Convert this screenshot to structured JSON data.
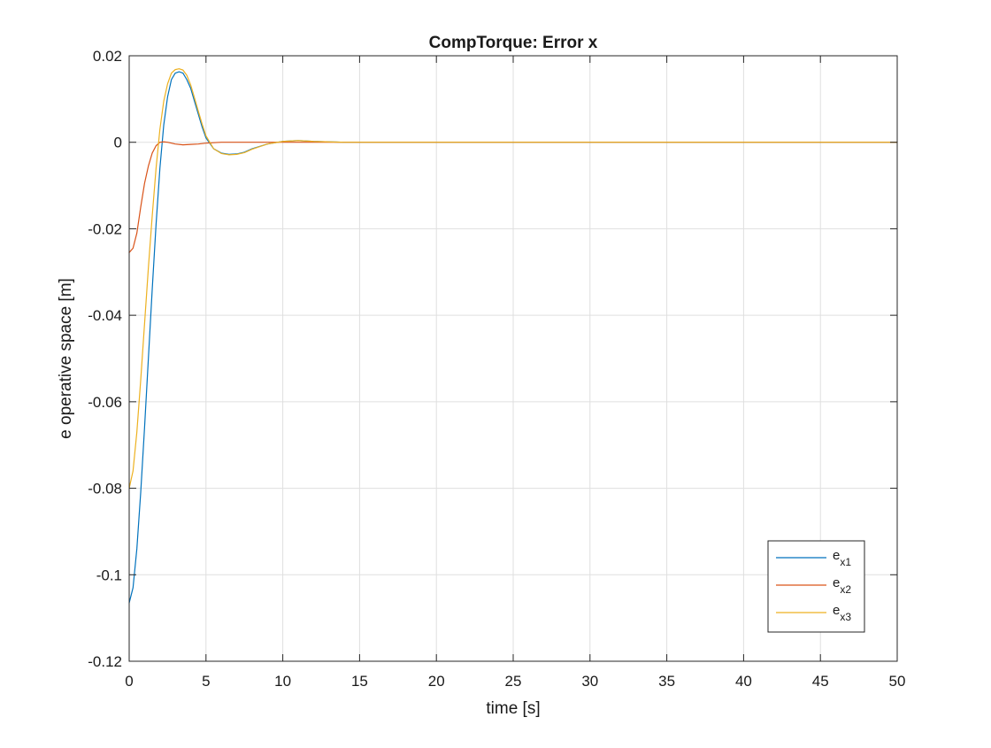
{
  "chart_data": {
    "type": "line",
    "title": "CompTorque: Error x",
    "xlabel": "time [s]",
    "ylabel": "e operative space [m]",
    "xlim": [
      0,
      50
    ],
    "ylim": [
      -0.12,
      0.02
    ],
    "xticks": [
      0,
      5,
      10,
      15,
      20,
      25,
      30,
      35,
      40,
      45,
      50
    ],
    "yticks": [
      -0.12,
      -0.1,
      -0.08,
      -0.06,
      -0.04,
      -0.02,
      0,
      0.02
    ],
    "xtick_labels": [
      "0",
      "5",
      "10",
      "15",
      "20",
      "25",
      "30",
      "35",
      "40",
      "45",
      "50"
    ],
    "ytick_labels": [
      "-0.12",
      "-0.1",
      "-0.08",
      "-0.06",
      "-0.04",
      "-0.02",
      "0",
      "0.02"
    ],
    "grid": true,
    "legend_position": "bottom-right",
    "series": [
      {
        "name": "e",
        "name_sub": "x1",
        "color": "#0072BD",
        "x": [
          0,
          0.25,
          0.5,
          0.75,
          1.0,
          1.25,
          1.5,
          1.75,
          2.0,
          2.25,
          2.5,
          2.75,
          3.0,
          3.25,
          3.5,
          3.75,
          4.0,
          4.25,
          4.5,
          4.75,
          5.0,
          5.5,
          6.0,
          6.5,
          7.0,
          7.5,
          8.0,
          9.0,
          10.0,
          11.0,
          12.0,
          13.0,
          14.0,
          16.0,
          20.0,
          30.0,
          40.0,
          50.0
        ],
        "y": [
          -0.1065,
          -0.103,
          -0.094,
          -0.081,
          -0.066,
          -0.05,
          -0.034,
          -0.019,
          -0.006,
          0.004,
          0.0105,
          0.0145,
          0.016,
          0.0163,
          0.016,
          0.0145,
          0.0125,
          0.0095,
          0.0065,
          0.0035,
          0.001,
          -0.0015,
          -0.0025,
          -0.0028,
          -0.0027,
          -0.0023,
          -0.0015,
          -0.0004,
          0.0002,
          0.0004,
          0.0002,
          0.0001,
          0.0,
          0.0,
          0.0,
          0.0,
          0.0,
          0.0
        ]
      },
      {
        "name": "e",
        "name_sub": "x2",
        "color": "#D95319",
        "x": [
          0,
          0.25,
          0.5,
          0.75,
          1.0,
          1.25,
          1.5,
          1.75,
          2.0,
          2.25,
          2.5,
          2.75,
          3.0,
          3.5,
          4.0,
          4.5,
          5.0,
          5.5,
          6.0,
          7.0,
          8.0,
          10.0,
          12.0,
          15.0,
          20.0,
          30.0,
          40.0,
          50.0
        ],
        "y": [
          -0.0255,
          -0.0245,
          -0.021,
          -0.015,
          -0.0095,
          -0.0055,
          -0.0025,
          -0.0008,
          0.0,
          0.0001,
          0.0,
          -0.0002,
          -0.0004,
          -0.0006,
          -0.0005,
          -0.0004,
          -0.0002,
          -0.0001,
          0.0,
          0.0,
          0.0,
          0.0,
          0.0,
          0.0,
          0.0,
          0.0,
          0.0,
          0.0
        ]
      },
      {
        "name": "e",
        "name_sub": "x3",
        "color": "#EDB120",
        "x": [
          0,
          0.25,
          0.5,
          0.75,
          1.0,
          1.25,
          1.5,
          1.75,
          2.0,
          2.25,
          2.5,
          2.75,
          3.0,
          3.25,
          3.5,
          3.75,
          4.0,
          4.25,
          4.5,
          4.75,
          5.0,
          5.5,
          6.0,
          6.5,
          7.0,
          7.5,
          8.0,
          9.0,
          10.0,
          11.0,
          12.0,
          13.0,
          14.0,
          16.0,
          20.0,
          30.0,
          40.0,
          50.0
        ],
        "y": [
          -0.08,
          -0.076,
          -0.067,
          -0.055,
          -0.042,
          -0.029,
          -0.017,
          -0.006,
          0.003,
          0.0095,
          0.0135,
          0.016,
          0.0168,
          0.017,
          0.0167,
          0.0155,
          0.0133,
          0.0103,
          0.0072,
          0.0042,
          0.0015,
          -0.0015,
          -0.0026,
          -0.0029,
          -0.0028,
          -0.0024,
          -0.0016,
          -0.0004,
          0.0002,
          0.0004,
          0.0002,
          0.0001,
          0.0,
          0.0,
          0.0,
          0.0,
          0.0,
          0.0
        ]
      }
    ]
  },
  "colors": {
    "axis": "#262626",
    "grid": "#dfdfdf",
    "background": "#ffffff"
  }
}
